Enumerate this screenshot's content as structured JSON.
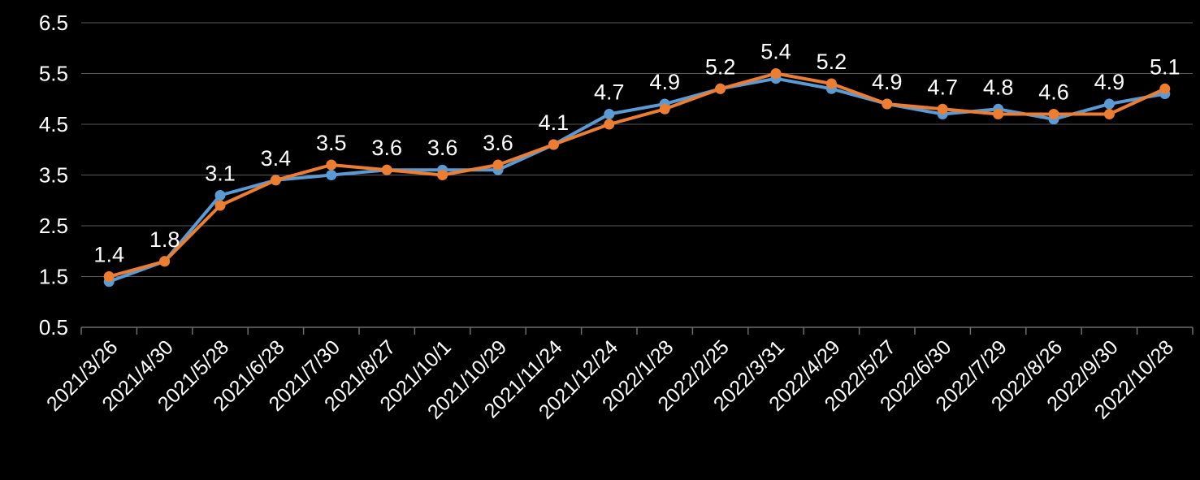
{
  "page": {
    "background": "#000000"
  },
  "chart_data": {
    "type": "line",
    "title": "",
    "xlabel": "",
    "ylabel": "",
    "categories": [
      "2021/3/26",
      "2021/4/30",
      "2021/5/28",
      "2021/6/28",
      "2021/7/30",
      "2021/8/27",
      "2021/10/1",
      "2021/10/29",
      "2021/11/24",
      "2021/12/24",
      "2022/1/28",
      "2022/2/25",
      "2022/3/31",
      "2022/4/29",
      "2022/5/27",
      "2022/6/30",
      "2022/7/29",
      "2022/8/26",
      "2022/9/30",
      "2022/10/28"
    ],
    "series": [
      {
        "name": "series-blue",
        "color": "#5B9BD5",
        "values": [
          1.4,
          1.8,
          3.1,
          3.4,
          3.5,
          3.6,
          3.6,
          3.6,
          4.1,
          4.7,
          4.9,
          5.2,
          5.4,
          5.2,
          4.9,
          4.7,
          4.8,
          4.6,
          4.9,
          5.1
        ]
      },
      {
        "name": "series-orange",
        "color": "#ED7D31",
        "values": [
          1.5,
          1.8,
          2.9,
          3.4,
          3.7,
          3.6,
          3.5,
          3.7,
          4.1,
          4.5,
          4.8,
          5.2,
          5.5,
          5.3,
          4.9,
          4.8,
          4.7,
          4.7,
          4.7,
          5.2
        ]
      }
    ],
    "data_labels": {
      "series": "series-blue",
      "values": [
        "1.4",
        "1.8",
        "3.1",
        "3.4",
        "3.5",
        "3.6",
        "3.6",
        "3.6",
        "4.1",
        "4.7",
        "4.9",
        "5.2",
        "5.4",
        "5.2",
        "4.9",
        "4.7",
        "4.8",
        "4.6",
        "4.9",
        "5.1"
      ]
    },
    "ylim": [
      0.5,
      6.5
    ],
    "ytick_step": 1,
    "yticks": [
      "0.5",
      "1.5",
      "2.5",
      "3.5",
      "4.5",
      "5.5",
      "6.5"
    ],
    "grid": "horizontal",
    "legend": "none",
    "x_label_rotation_deg": -45,
    "text_color": "#FFFFFF",
    "gridline_color": "#595959",
    "axis_color": "#6E6E6E",
    "background": "#000000"
  }
}
